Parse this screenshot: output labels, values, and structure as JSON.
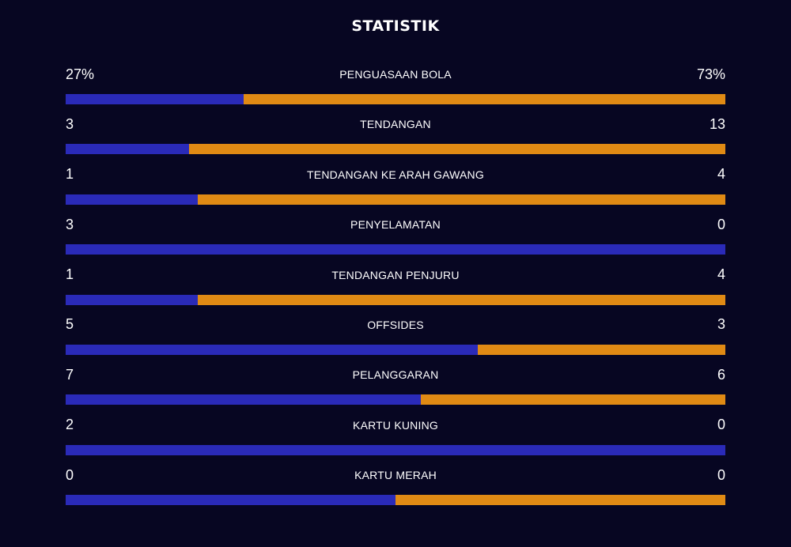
{
  "title": "STATISTIK",
  "colors": {
    "background": "#070622",
    "home": "#2a2ab8",
    "away": "#e08a14"
  },
  "stats": [
    {
      "label": "PENGUASAAN BOLA",
      "home": "27%",
      "away": "73%",
      "home_share": 0.27
    },
    {
      "label": "TENDANGAN",
      "home": "3",
      "away": "13",
      "home_share": 0.1875
    },
    {
      "label": "TENDANGAN KE ARAH GAWANG",
      "home": "1",
      "away": "4",
      "home_share": 0.2
    },
    {
      "label": "PENYELAMATAN",
      "home": "3",
      "away": "0",
      "home_share": 1.0
    },
    {
      "label": "TENDANGAN PENJURU",
      "home": "1",
      "away": "4",
      "home_share": 0.2
    },
    {
      "label": "OFFSIDES",
      "home": "5",
      "away": "3",
      "home_share": 0.625
    },
    {
      "label": "PELANGGARAN",
      "home": "7",
      "away": "6",
      "home_share": 0.5385
    },
    {
      "label": "KARTU KUNING",
      "home": "2",
      "away": "0",
      "home_share": 1.0
    },
    {
      "label": "KARTU MERAH",
      "home": "0",
      "away": "0",
      "home_share": 0.5
    }
  ]
}
